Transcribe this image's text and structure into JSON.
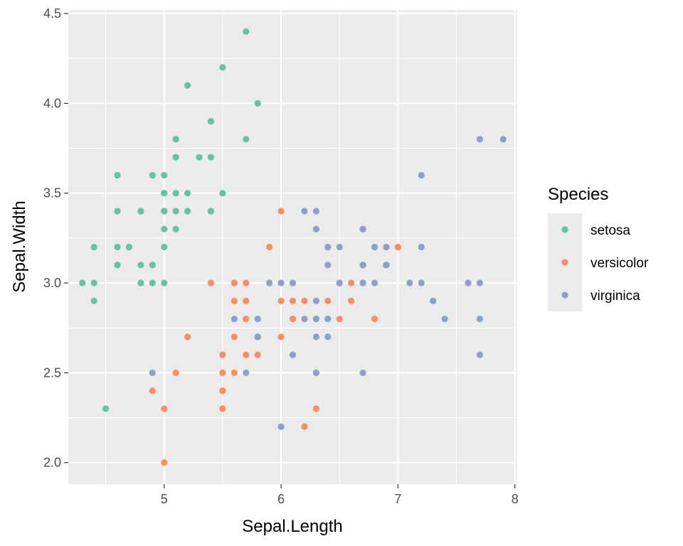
{
  "chart_data": {
    "type": "scatter",
    "xlabel": "Sepal.Length",
    "ylabel": "Sepal.Width",
    "xlim": [
      4.18,
      8.02
    ],
    "ylim": [
      1.88,
      4.52
    ],
    "x_ticks": [
      5,
      6,
      7,
      8
    ],
    "y_ticks": [
      2.0,
      2.5,
      3.0,
      3.5,
      4.0,
      4.5
    ],
    "x_tick_labels": [
      "5",
      "6",
      "7",
      "8"
    ],
    "y_tick_labels": [
      "2.0",
      "2.5",
      "3.0",
      "3.5",
      "4.0",
      "4.5"
    ],
    "grid": true,
    "legend": {
      "title": "Species",
      "position": "right"
    },
    "series": [
      {
        "name": "setosa",
        "color": "#66c2a5",
        "points": [
          [
            5.1,
            3.5
          ],
          [
            4.9,
            3.0
          ],
          [
            4.7,
            3.2
          ],
          [
            4.6,
            3.1
          ],
          [
            5.0,
            3.6
          ],
          [
            5.4,
            3.9
          ],
          [
            4.6,
            3.4
          ],
          [
            5.0,
            3.4
          ],
          [
            4.4,
            2.9
          ],
          [
            4.9,
            3.1
          ],
          [
            5.4,
            3.7
          ],
          [
            4.8,
            3.4
          ],
          [
            4.8,
            3.0
          ],
          [
            4.3,
            3.0
          ],
          [
            5.8,
            4.0
          ],
          [
            5.7,
            4.4
          ],
          [
            5.4,
            3.9
          ],
          [
            5.1,
            3.5
          ],
          [
            5.7,
            3.8
          ],
          [
            5.1,
            3.8
          ],
          [
            5.4,
            3.4
          ],
          [
            5.1,
            3.7
          ],
          [
            4.6,
            3.6
          ],
          [
            5.1,
            3.3
          ],
          [
            4.8,
            3.4
          ],
          [
            5.0,
            3.0
          ],
          [
            5.0,
            3.4
          ],
          [
            5.2,
            3.5
          ],
          [
            5.2,
            3.4
          ],
          [
            4.7,
            3.2
          ],
          [
            4.8,
            3.1
          ],
          [
            5.4,
            3.4
          ],
          [
            5.2,
            4.1
          ],
          [
            5.5,
            4.2
          ],
          [
            4.9,
            3.1
          ],
          [
            5.0,
            3.2
          ],
          [
            5.5,
            3.5
          ],
          [
            4.9,
            3.6
          ],
          [
            4.4,
            3.0
          ],
          [
            5.1,
            3.4
          ],
          [
            5.0,
            3.5
          ],
          [
            4.5,
            2.3
          ],
          [
            4.4,
            3.2
          ],
          [
            5.0,
            3.5
          ],
          [
            5.1,
            3.8
          ],
          [
            4.8,
            3.0
          ],
          [
            5.1,
            3.8
          ],
          [
            4.6,
            3.2
          ],
          [
            5.3,
            3.7
          ],
          [
            5.0,
            3.3
          ]
        ]
      },
      {
        "name": "versicolor",
        "color": "#fc8d62",
        "points": [
          [
            7.0,
            3.2
          ],
          [
            6.4,
            3.2
          ],
          [
            6.9,
            3.1
          ],
          [
            5.5,
            2.3
          ],
          [
            6.5,
            2.8
          ],
          [
            5.7,
            2.8
          ],
          [
            6.3,
            3.3
          ],
          [
            4.9,
            2.4
          ],
          [
            6.6,
            2.9
          ],
          [
            5.2,
            2.7
          ],
          [
            5.0,
            2.0
          ],
          [
            5.9,
            3.0
          ],
          [
            6.0,
            2.2
          ],
          [
            6.1,
            2.9
          ],
          [
            5.6,
            2.9
          ],
          [
            6.7,
            3.1
          ],
          [
            5.6,
            3.0
          ],
          [
            5.8,
            2.7
          ],
          [
            6.2,
            2.2
          ],
          [
            5.6,
            2.5
          ],
          [
            5.9,
            3.2
          ],
          [
            6.1,
            2.8
          ],
          [
            6.3,
            2.5
          ],
          [
            6.1,
            2.8
          ],
          [
            6.4,
            2.9
          ],
          [
            6.6,
            3.0
          ],
          [
            6.8,
            2.8
          ],
          [
            6.7,
            3.0
          ],
          [
            6.0,
            2.9
          ],
          [
            5.7,
            2.6
          ],
          [
            5.5,
            2.4
          ],
          [
            5.5,
            2.4
          ],
          [
            5.8,
            2.7
          ],
          [
            6.0,
            2.7
          ],
          [
            5.4,
            3.0
          ],
          [
            6.0,
            3.4
          ],
          [
            6.7,
            3.1
          ],
          [
            6.3,
            2.3
          ],
          [
            5.6,
            3.0
          ],
          [
            5.5,
            2.5
          ],
          [
            5.5,
            2.6
          ],
          [
            6.1,
            3.0
          ],
          [
            5.8,
            2.6
          ],
          [
            5.0,
            2.3
          ],
          [
            5.6,
            2.7
          ],
          [
            5.7,
            3.0
          ],
          [
            5.7,
            2.9
          ],
          [
            6.2,
            2.9
          ],
          [
            5.1,
            2.5
          ],
          [
            5.7,
            2.8
          ]
        ]
      },
      {
        "name": "virginica",
        "color": "#8da0cb",
        "points": [
          [
            6.3,
            3.3
          ],
          [
            5.8,
            2.7
          ],
          [
            7.1,
            3.0
          ],
          [
            6.3,
            2.9
          ],
          [
            6.5,
            3.0
          ],
          [
            7.6,
            3.0
          ],
          [
            4.9,
            2.5
          ],
          [
            7.3,
            2.9
          ],
          [
            6.7,
            2.5
          ],
          [
            7.2,
            3.6
          ],
          [
            6.5,
            3.2
          ],
          [
            6.4,
            2.7
          ],
          [
            6.8,
            3.0
          ],
          [
            5.7,
            2.5
          ],
          [
            5.8,
            2.8
          ],
          [
            6.4,
            3.2
          ],
          [
            6.5,
            3.0
          ],
          [
            7.7,
            3.8
          ],
          [
            7.7,
            2.6
          ],
          [
            6.0,
            2.2
          ],
          [
            6.9,
            3.2
          ],
          [
            5.6,
            2.8
          ],
          [
            7.7,
            2.8
          ],
          [
            6.3,
            2.7
          ],
          [
            6.7,
            3.3
          ],
          [
            7.2,
            3.2
          ],
          [
            6.2,
            2.8
          ],
          [
            6.1,
            3.0
          ],
          [
            6.4,
            2.8
          ],
          [
            7.2,
            3.0
          ],
          [
            7.4,
            2.8
          ],
          [
            7.9,
            3.8
          ],
          [
            6.4,
            2.8
          ],
          [
            6.3,
            2.8
          ],
          [
            6.1,
            2.6
          ],
          [
            7.7,
            3.0
          ],
          [
            6.3,
            3.4
          ],
          [
            6.4,
            3.1
          ],
          [
            6.0,
            3.0
          ],
          [
            6.9,
            3.1
          ],
          [
            6.7,
            3.1
          ],
          [
            6.9,
            3.1
          ],
          [
            5.8,
            2.7
          ],
          [
            6.8,
            3.2
          ],
          [
            6.7,
            3.3
          ],
          [
            6.7,
            3.0
          ],
          [
            6.3,
            2.5
          ],
          [
            6.5,
            3.0
          ],
          [
            6.2,
            3.4
          ],
          [
            5.9,
            3.0
          ]
        ]
      }
    ]
  }
}
